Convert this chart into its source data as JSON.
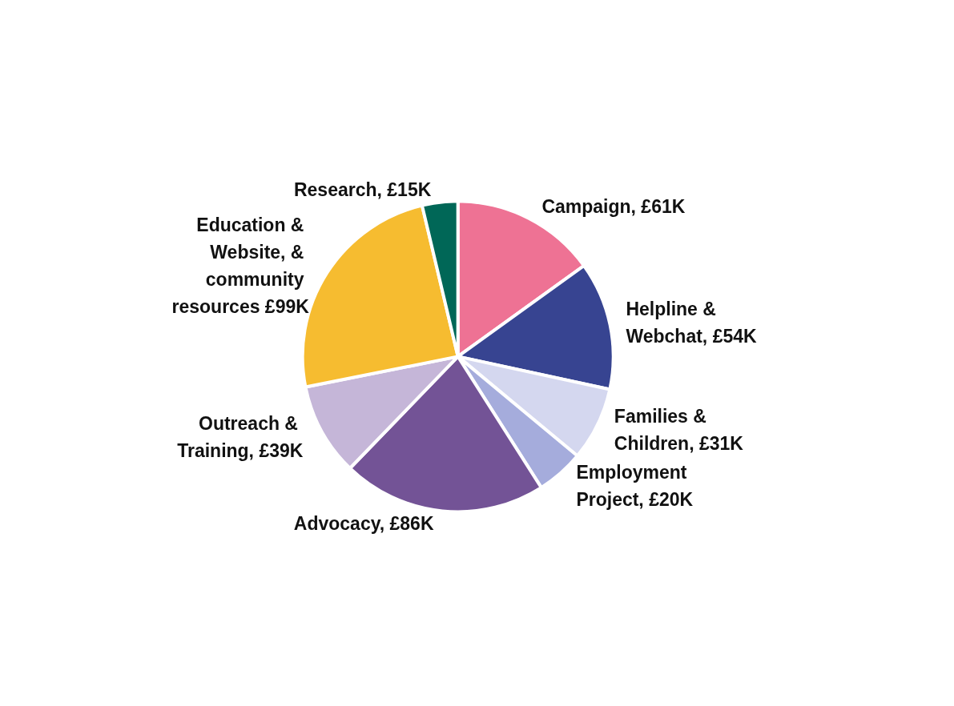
{
  "chart_data": {
    "type": "pie",
    "categories": [
      "Campaign, £61K",
      "Helpline & Webchat, £54K",
      "Families & Children, £31K",
      "Employment Project, £20K",
      "Advocacy, £86K",
      "Outreach & Training, £39K",
      "Education & Website, & community resources £99K",
      "Research, £15K"
    ],
    "values": [
      61,
      54,
      31,
      20,
      86,
      39,
      99,
      15
    ],
    "colors": [
      "#ee7294",
      "#374491",
      "#d4d7ef",
      "#a5acdc",
      "#735396",
      "#c5b6d8",
      "#f6bc30",
      "#006757"
    ]
  }
}
